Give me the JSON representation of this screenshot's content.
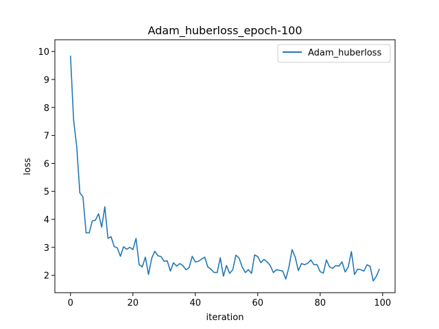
{
  "chart_data": {
    "type": "line",
    "title": "Adam_huberloss_epoch-100",
    "xlabel": "iteration",
    "ylabel": "loss",
    "xlim": [
      -5,
      104
    ],
    "ylim": [
      1.38,
      10.42
    ],
    "xticks": [
      0,
      20,
      40,
      60,
      80,
      100
    ],
    "yticks": [
      2,
      3,
      4,
      5,
      6,
      7,
      8,
      9,
      10
    ],
    "grid": false,
    "legend_position": "top-right",
    "series": [
      {
        "name": "Adam_huberloss",
        "color": "#1f77b4",
        "x": [
          0,
          1,
          2,
          3,
          4,
          5,
          6,
          7,
          8,
          9,
          10,
          11,
          12,
          13,
          14,
          15,
          16,
          17,
          18,
          19,
          20,
          21,
          22,
          23,
          24,
          25,
          26,
          27,
          28,
          29,
          30,
          31,
          32,
          33,
          34,
          35,
          36,
          37,
          38,
          39,
          40,
          41,
          42,
          43,
          44,
          45,
          46,
          47,
          48,
          49,
          50,
          51,
          52,
          53,
          54,
          55,
          56,
          57,
          58,
          59,
          60,
          61,
          62,
          63,
          64,
          65,
          66,
          67,
          68,
          69,
          70,
          71,
          72,
          73,
          74,
          75,
          76,
          77,
          78,
          79,
          80,
          81,
          82,
          83,
          84,
          85,
          86,
          87,
          88,
          89,
          90,
          91,
          92,
          93,
          94,
          95,
          96,
          97,
          98,
          99
        ],
        "values": [
          9.85,
          7.55,
          6.6,
          4.95,
          4.8,
          3.52,
          3.52,
          3.95,
          3.97,
          4.2,
          3.72,
          4.45,
          3.32,
          3.38,
          3.03,
          2.98,
          2.68,
          3.02,
          2.93,
          3.0,
          2.92,
          3.32,
          2.38,
          2.3,
          2.65,
          2.03,
          2.6,
          2.86,
          2.7,
          2.67,
          2.5,
          2.52,
          2.15,
          2.45,
          2.33,
          2.42,
          2.35,
          2.2,
          2.27,
          2.68,
          2.48,
          2.5,
          2.58,
          2.65,
          2.3,
          2.22,
          2.1,
          2.1,
          2.63,
          1.97,
          2.35,
          2.07,
          2.2,
          2.72,
          2.62,
          2.3,
          2.1,
          2.2,
          2.07,
          2.73,
          2.67,
          2.45,
          2.57,
          2.48,
          2.35,
          2.1,
          2.2,
          2.18,
          2.15,
          1.87,
          2.3,
          2.92,
          2.65,
          2.17,
          2.42,
          2.38,
          2.43,
          2.55,
          2.38,
          2.38,
          2.13,
          2.08,
          2.55,
          2.3,
          2.25,
          2.35,
          2.33,
          2.48,
          2.12,
          2.3,
          2.85,
          2.03,
          2.22,
          2.2,
          2.15,
          2.38,
          2.32,
          1.8,
          1.97,
          2.23
        ]
      }
    ]
  }
}
